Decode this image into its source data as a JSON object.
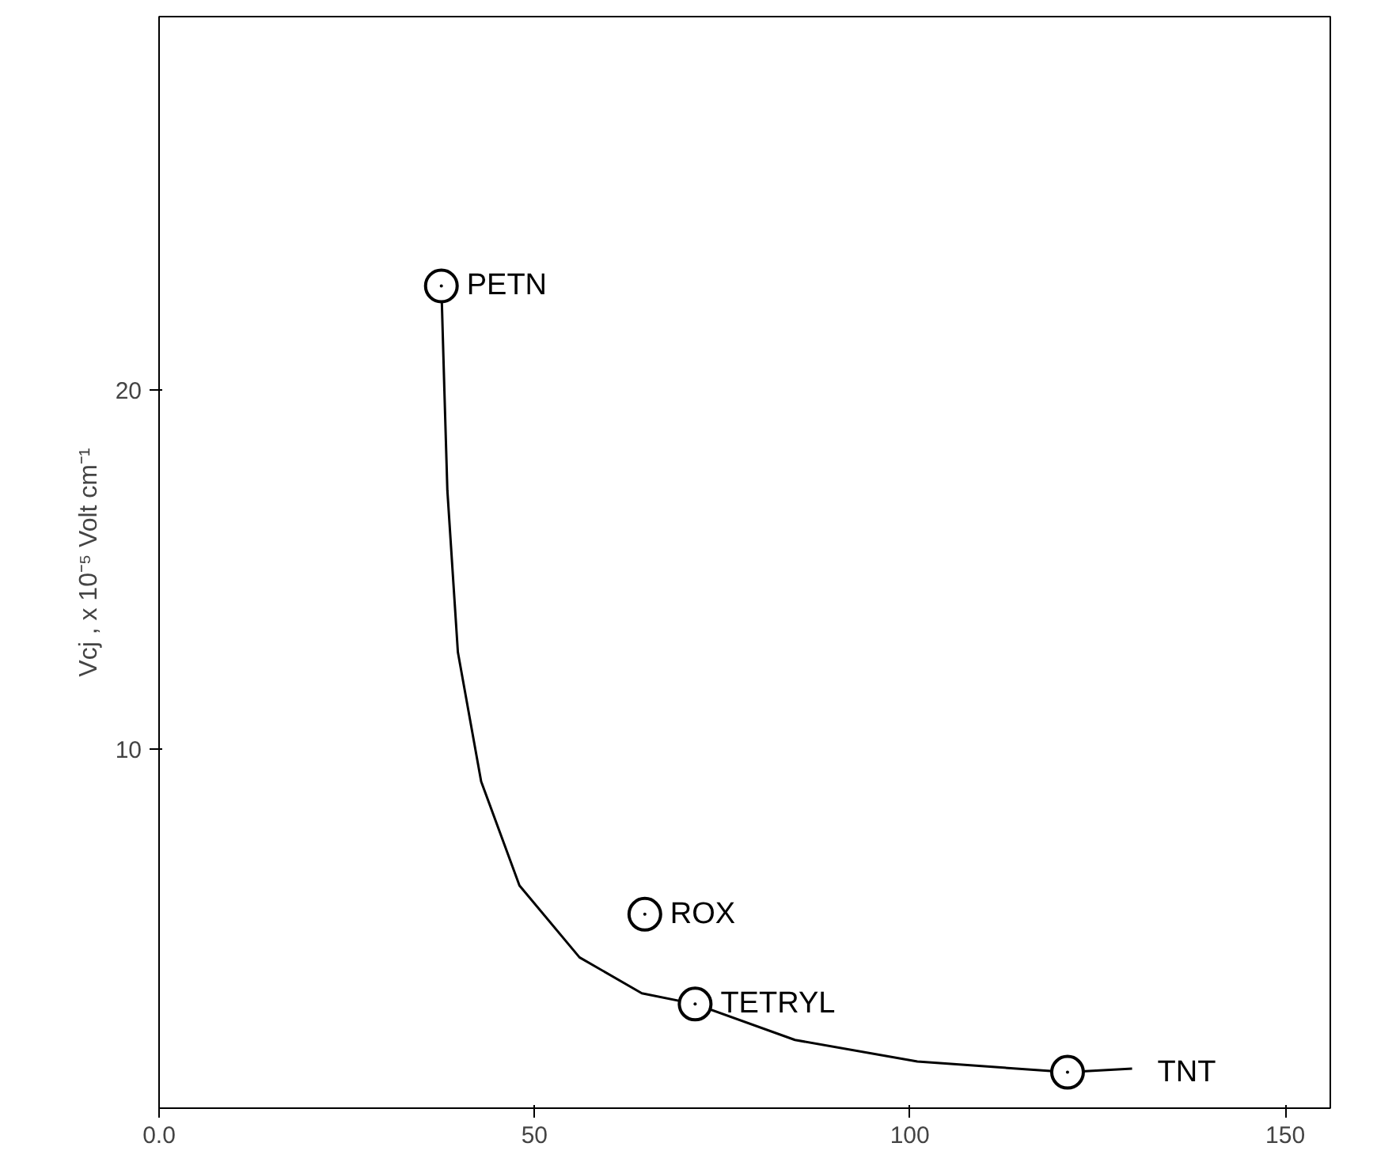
{
  "chart_data": {
    "type": "scatter",
    "ylabel": "Vcj , x 10⁻⁵ Volt cm⁻¹",
    "xlim": [
      0,
      156
    ],
    "ylim": [
      0,
      30.4
    ],
    "xticks": [
      {
        "value": 0,
        "label": "0.0"
      },
      50,
      100,
      150
    ],
    "yticks": [
      10,
      20
    ],
    "grid": false,
    "series": [
      {
        "type": "line",
        "color": "#000000",
        "line_style": "solid",
        "x": [
          37.6,
          38.0,
          38.4,
          39.8,
          42.9,
          48.0,
          56.0,
          64.3,
          71.4,
          84.7,
          101.0,
          121.0,
          129.6
        ],
        "values": [
          22.9,
          20.0,
          17.2,
          12.7,
          9.1,
          6.2,
          4.2,
          3.2,
          2.9,
          1.9,
          1.3,
          1.0,
          1.1
        ]
      },
      {
        "marker": "circle",
        "color": "#000000",
        "x": [
          37.6,
          64.7,
          71.4,
          121.0
        ],
        "values": [
          22.9,
          5.4,
          2.9,
          1.0
        ]
      }
    ],
    "annotations": [
      {
        "text": "PETN",
        "x": 37.6,
        "y": 22.9
      },
      {
        "text": "ROX",
        "x": 64.7,
        "y": 5.4
      },
      {
        "text": "TETRYL",
        "x": 71.4,
        "y": 2.9
      },
      {
        "text": "TNT",
        "x": 129.6,
        "y": 1.0
      }
    ]
  }
}
